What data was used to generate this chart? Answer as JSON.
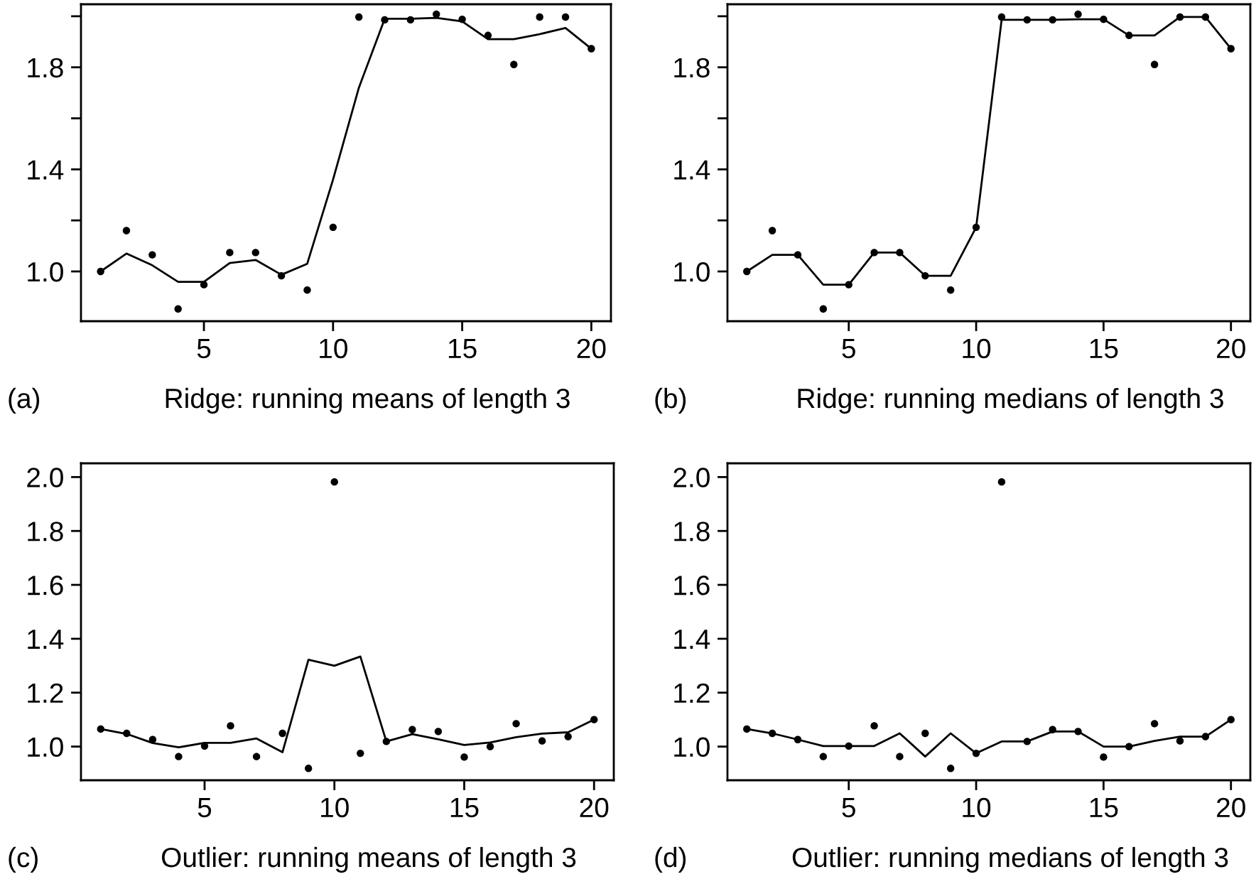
{
  "chart_data": [
    {
      "type": "scatter",
      "title": "Ridge: running means of length 3",
      "annotations": [
        "(a)"
      ],
      "x": [
        1,
        2,
        3,
        4,
        5,
        6,
        7,
        8,
        9,
        10,
        11,
        12,
        13,
        14,
        15,
        16,
        17,
        18,
        19,
        20
      ],
      "series": [
        {
          "color": "#000000",
          "marker": "circle",
          "values": [
            1.0,
            1.16,
            1.065,
            0.853,
            0.948,
            1.074,
            1.074,
            0.983,
            0.927,
            1.173,
            1.997,
            1.986,
            1.986,
            2.008,
            1.988,
            1.925,
            1.811,
            1.997,
            1.997,
            1.873
          ]
        },
        {
          "type": "line",
          "color": "#000000",
          "marker": "none",
          "line_style": "solid",
          "values": [
            1.0,
            1.07,
            1.024,
            0.959,
            0.959,
            1.033,
            1.045,
            0.987,
            1.03,
            1.36,
            1.72,
            1.99,
            1.99,
            1.994,
            1.98,
            1.91,
            1.91,
            1.93,
            1.954,
            1.873
          ]
        }
      ],
      "xlim": [
        0.24,
        20.76
      ],
      "xticks": [
        5,
        10,
        15,
        20
      ],
      "ylim": [
        0.805,
        2.047
      ],
      "yticks": [
        {
          "value": 1.0,
          "label": "1.0"
        },
        {
          "value": 1.2,
          "label": null
        },
        1.4,
        {
          "value": 1.6,
          "label": null
        },
        1.8,
        {
          "value": 2.0,
          "label": null
        }
      ],
      "grid": false,
      "legend": false
    },
    {
      "type": "scatter",
      "title": "Ridge: running medians of length 3",
      "annotations": [
        "(b)"
      ],
      "x": [
        1,
        2,
        3,
        4,
        5,
        6,
        7,
        8,
        9,
        10,
        11,
        12,
        13,
        14,
        15,
        16,
        17,
        18,
        19,
        20
      ],
      "series": [
        {
          "color": "#000000",
          "marker": "circle",
          "values": [
            1.0,
            1.16,
            1.065,
            0.853,
            0.948,
            1.074,
            1.074,
            0.983,
            0.927,
            1.173,
            1.997,
            1.986,
            1.986,
            2.008,
            1.988,
            1.925,
            1.811,
            1.997,
            1.997,
            1.873
          ]
        },
        {
          "type": "line",
          "color": "#000000",
          "marker": "none",
          "line_style": "solid",
          "values": [
            1.0,
            1.065,
            1.065,
            0.948,
            0.948,
            1.074,
            1.074,
            0.983,
            0.983,
            1.173,
            1.986,
            1.986,
            1.986,
            1.988,
            1.988,
            1.925,
            1.925,
            1.997,
            1.997,
            1.873
          ]
        }
      ],
      "xlim": [
        0.24,
        20.76
      ],
      "xticks": [
        5,
        10,
        15,
        20
      ],
      "ylim": [
        0.805,
        2.047
      ],
      "yticks": [
        {
          "value": 1.0,
          "label": "1.0"
        },
        {
          "value": 1.2,
          "label": null
        },
        1.4,
        {
          "value": 1.6,
          "label": null
        },
        1.8,
        {
          "value": 2.0,
          "label": null
        }
      ],
      "grid": false,
      "legend": false
    },
    {
      "type": "scatter",
      "title": "Outlier: running means of length 3",
      "annotations": [
        "(c)"
      ],
      "x": [
        1,
        2,
        3,
        4,
        5,
        6,
        7,
        8,
        9,
        10,
        11,
        12,
        13,
        14,
        15,
        16,
        17,
        18,
        19,
        20
      ],
      "series": [
        {
          "color": "#000000",
          "marker": "circle",
          "values": [
            1.065,
            1.049,
            1.026,
            0.963,
            1.002,
            1.077,
            0.963,
            1.049,
            0.919,
            1.982,
            0.975,
            1.019,
            1.063,
            1.056,
            0.961,
            1.0,
            1.085,
            1.021,
            1.037,
            1.1
          ]
        },
        {
          "type": "line",
          "color": "#000000",
          "marker": "none",
          "line_style": "solid",
          "values": [
            1.065,
            1.047,
            1.013,
            0.997,
            1.014,
            1.014,
            1.03,
            0.979,
            1.322,
            1.3,
            1.334,
            1.019,
            1.046,
            1.027,
            1.006,
            1.015,
            1.035,
            1.048,
            1.053,
            1.1
          ]
        }
      ],
      "xlim": [
        0.24,
        20.76
      ],
      "xticks": [
        5,
        10,
        15,
        20
      ],
      "ylim": [
        0.875,
        2.051
      ],
      "yticks": [
        {
          "value": 1.0,
          "label": "1.0"
        },
        1.2,
        1.4,
        1.6,
        1.8,
        {
          "value": 2.0,
          "label": "2.0"
        }
      ],
      "grid": false,
      "legend": false
    },
    {
      "type": "scatter",
      "title": "Outlier: running medians of length 3",
      "annotations": [
        "(d)"
      ],
      "x": [
        1,
        2,
        3,
        4,
        5,
        6,
        7,
        8,
        9,
        10,
        11,
        12,
        13,
        14,
        15,
        16,
        17,
        18,
        19,
        20
      ],
      "series": [
        {
          "color": "#000000",
          "marker": "circle",
          "values": [
            1.065,
            1.049,
            1.026,
            0.963,
            1.002,
            1.077,
            0.963,
            1.049,
            0.919,
            0.975,
            1.982,
            1.019,
            1.063,
            1.056,
            0.961,
            1.0,
            1.085,
            1.021,
            1.037,
            1.1
          ]
        },
        {
          "type": "line",
          "color": "#000000",
          "marker": "none",
          "line_style": "solid",
          "values": [
            1.065,
            1.049,
            1.026,
            1.002,
            1.002,
            1.002,
            1.049,
            0.963,
            1.049,
            0.975,
            1.019,
            1.019,
            1.056,
            1.056,
            1.0,
            1.0,
            1.021,
            1.037,
            1.037,
            1.1
          ]
        }
      ],
      "xlim": [
        0.24,
        20.76
      ],
      "xticks": [
        5,
        10,
        15,
        20
      ],
      "ylim": [
        0.875,
        2.051
      ],
      "yticks": [
        {
          "value": 1.0,
          "label": "1.0"
        },
        1.2,
        1.4,
        1.6,
        1.8,
        {
          "value": 2.0,
          "label": "2.0"
        }
      ],
      "grid": false,
      "legend": false
    }
  ]
}
